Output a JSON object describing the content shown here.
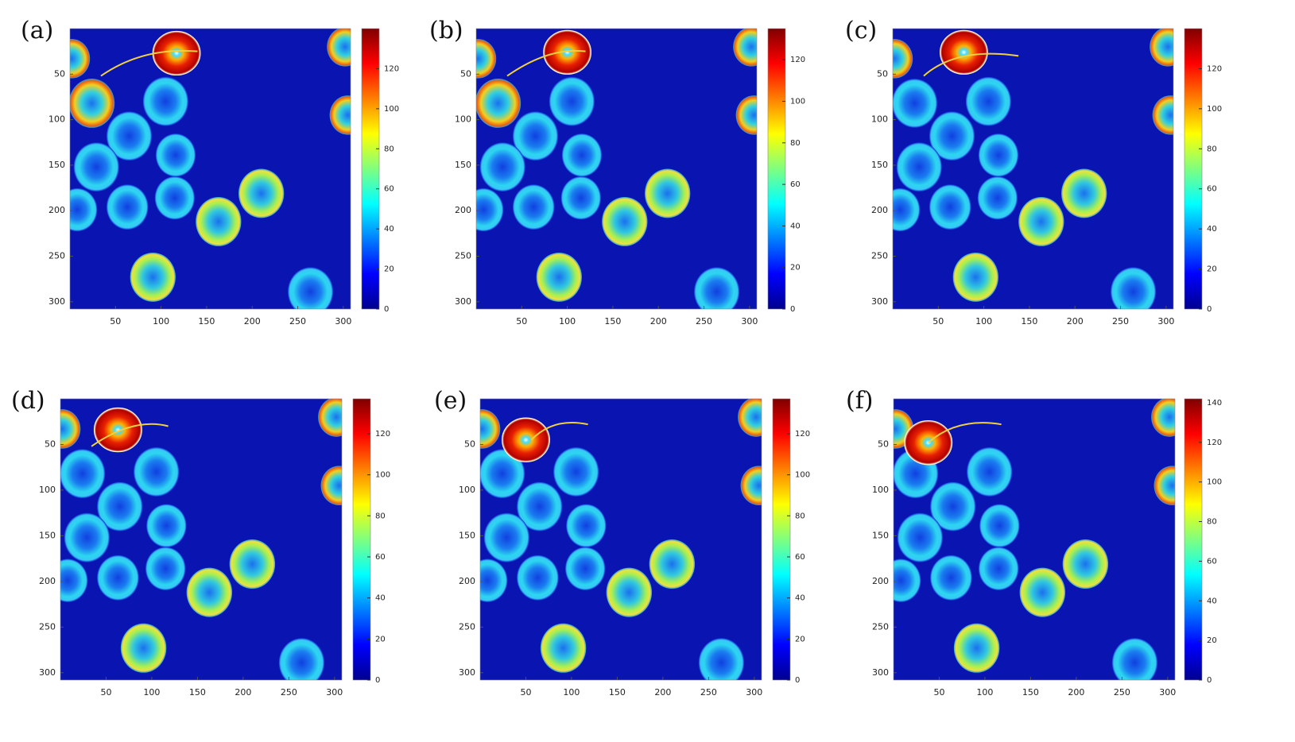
{
  "chart_data": [
    {
      "type": "heatmap",
      "label": "(a)",
      "colormap": "jet",
      "xlim": [
        0,
        308
      ],
      "xticks": [
        50,
        100,
        150,
        200,
        250,
        300
      ],
      "ylim": [
        0,
        308
      ],
      "y_reversed": true,
      "yticks": [
        50,
        100,
        150,
        200,
        250,
        300
      ],
      "clim": [
        0,
        140
      ],
      "cticks": [
        0,
        20,
        40,
        60,
        80,
        100,
        120
      ]
    },
    {
      "type": "heatmap",
      "label": "(b)",
      "colormap": "jet",
      "xlim": [
        0,
        308
      ],
      "xticks": [
        50,
        100,
        150,
        200,
        250,
        300
      ],
      "ylim": [
        0,
        308
      ],
      "y_reversed": true,
      "yticks": [
        50,
        100,
        150,
        200,
        250,
        300
      ],
      "clim": [
        0,
        135
      ],
      "cticks": [
        0,
        20,
        40,
        60,
        80,
        100,
        120
      ]
    },
    {
      "type": "heatmap",
      "label": "(c)",
      "colormap": "jet",
      "xlim": [
        0,
        308
      ],
      "xticks": [
        50,
        100,
        150,
        200,
        250,
        300
      ],
      "ylim": [
        0,
        308
      ],
      "y_reversed": true,
      "yticks": [
        50,
        100,
        150,
        200,
        250,
        300
      ],
      "clim": [
        0,
        140
      ],
      "cticks": [
        0,
        20,
        40,
        60,
        80,
        100,
        120
      ]
    },
    {
      "type": "heatmap",
      "label": "(d)",
      "colormap": "jet",
      "xlim": [
        0,
        308
      ],
      "xticks": [
        50,
        100,
        150,
        200,
        250,
        300
      ],
      "ylim": [
        0,
        308
      ],
      "y_reversed": true,
      "yticks": [
        50,
        100,
        150,
        200,
        250,
        300
      ],
      "clim": [
        0,
        137
      ],
      "cticks": [
        0,
        20,
        40,
        60,
        80,
        100,
        120
      ]
    },
    {
      "type": "heatmap",
      "label": "(e)",
      "colormap": "jet",
      "xlim": [
        0,
        308
      ],
      "xticks": [
        50,
        100,
        150,
        200,
        250,
        300
      ],
      "ylim": [
        0,
        308
      ],
      "y_reversed": true,
      "yticks": [
        50,
        100,
        150,
        200,
        250,
        300
      ],
      "clim": [
        0,
        137
      ],
      "cticks": [
        0,
        20,
        40,
        60,
        80,
        100,
        120
      ]
    },
    {
      "type": "heatmap",
      "label": "(f)",
      "colormap": "jet",
      "xlim": [
        0,
        308
      ],
      "xticks": [
        50,
        100,
        150,
        200,
        250,
        300
      ],
      "ylim": [
        0,
        308
      ],
      "y_reversed": true,
      "yticks": [
        50,
        100,
        150,
        200,
        250,
        300
      ],
      "clim": [
        0,
        142
      ],
      "cticks": [
        0,
        20,
        40,
        60,
        80,
        100,
        120,
        140
      ]
    }
  ]
}
